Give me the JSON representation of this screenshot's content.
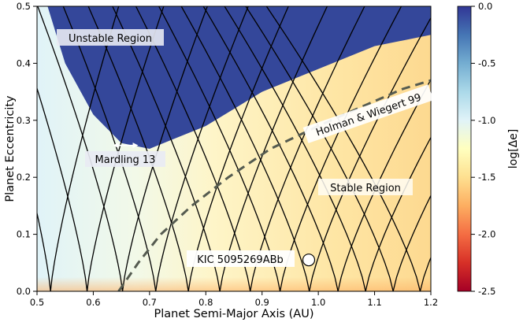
{
  "chart_data": {
    "type": "heatmap",
    "title": "",
    "xlabel": "Planet Semi-Major Axis (AU)",
    "ylabel": "Planet Eccentricity",
    "xlim": [
      0.5,
      1.2
    ],
    "ylim": [
      0.0,
      0.5
    ],
    "x_ticks": [
      "0.5",
      "0.6",
      "0.7",
      "0.8",
      "0.9",
      "1.0",
      "1.1",
      "1.2"
    ],
    "x_tick_values": [
      0.5,
      0.6,
      0.7,
      0.8,
      0.9,
      1.0,
      1.1,
      1.2
    ],
    "y_ticks": [
      "0.0",
      "0.1",
      "0.2",
      "0.3",
      "0.4",
      "0.5"
    ],
    "y_tick_values": [
      0.0,
      0.1,
      0.2,
      0.3,
      0.4,
      0.5
    ],
    "colorbar": {
      "label": "log[Δe]",
      "range": [
        -2.5,
        0.0
      ],
      "ticks": [
        "0.0",
        "-0.5",
        "-1.0",
        "-1.5",
        "-2.0",
        "-2.5"
      ],
      "tick_values": [
        0.0,
        -0.5,
        -1.0,
        -1.5,
        -2.0,
        -2.5
      ],
      "colormap": [
        "#a50026",
        "#d73027",
        "#f46d43",
        "#fdae61",
        "#fee090",
        "#ffffbf",
        "#e0f3f8",
        "#abd9e9",
        "#74add1",
        "#4575b4",
        "#313695"
      ]
    },
    "stability_boundary": [
      {
        "a": 0.5,
        "e": 0.56
      },
      {
        "a": 0.55,
        "e": 0.4
      },
      {
        "a": 0.6,
        "e": 0.31
      },
      {
        "a": 0.65,
        "e": 0.26
      },
      {
        "a": 0.7,
        "e": 0.25
      },
      {
        "a": 0.75,
        "e": 0.27
      },
      {
        "a": 0.8,
        "e": 0.29
      },
      {
        "a": 0.85,
        "e": 0.32
      },
      {
        "a": 0.9,
        "e": 0.35
      },
      {
        "a": 0.95,
        "e": 0.37
      },
      {
        "a": 1.0,
        "e": 0.39
      },
      {
        "a": 1.05,
        "e": 0.41
      },
      {
        "a": 1.1,
        "e": 0.43
      },
      {
        "a": 1.15,
        "e": 0.44
      },
      {
        "a": 1.2,
        "e": 0.45
      }
    ],
    "resonance_cusps_a": [
      0.524,
      0.589,
      0.652,
      0.711,
      0.769,
      0.825,
      0.879,
      0.932,
      0.984,
      1.035,
      1.084,
      1.133,
      1.181
    ],
    "holman_wiegert_curve": [
      {
        "a": 0.645,
        "e": 0.0
      },
      {
        "a": 0.68,
        "e": 0.05
      },
      {
        "a": 0.72,
        "e": 0.1
      },
      {
        "a": 0.775,
        "e": 0.15
      },
      {
        "a": 0.84,
        "e": 0.2
      },
      {
        "a": 0.915,
        "e": 0.25
      },
      {
        "a": 1.0,
        "e": 0.29
      },
      {
        "a": 1.08,
        "e": 0.325
      },
      {
        "a": 1.15,
        "e": 0.355
      },
      {
        "a": 1.2,
        "e": 0.37
      }
    ],
    "annotations": {
      "unstable_region": "Unstable Region",
      "stable_region": "Stable Region",
      "holman_wiegert": "Holman & Wiegert 99",
      "mardling": "Mardling 13",
      "planet_label": "KIC 5095269ABb"
    },
    "planet_point": {
      "a": 0.983,
      "e": 0.055
    },
    "mardling_arrow": {
      "a_start": 0.635,
      "a_end": 0.68,
      "e": 0.256
    }
  }
}
